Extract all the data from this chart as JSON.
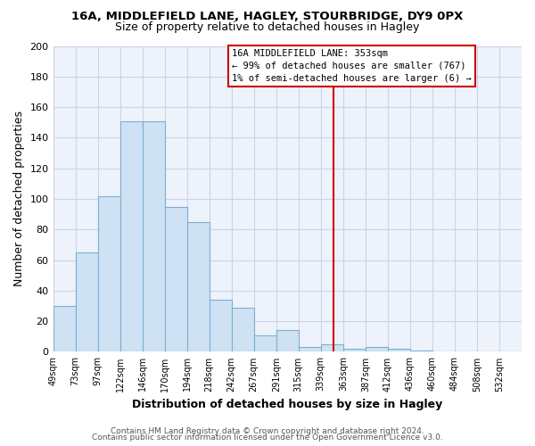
{
  "title": "16A, MIDDLEFIELD LANE, HAGLEY, STOURBRIDGE, DY9 0PX",
  "subtitle": "Size of property relative to detached houses in Hagley",
  "xlabel": "Distribution of detached houses by size in Hagley",
  "ylabel": "Number of detached properties",
  "bin_labels": [
    "49sqm",
    "73sqm",
    "97sqm",
    "122sqm",
    "146sqm",
    "170sqm",
    "194sqm",
    "218sqm",
    "242sqm",
    "267sqm",
    "291sqm",
    "315sqm",
    "339sqm",
    "363sqm",
    "387sqm",
    "412sqm",
    "436sqm",
    "460sqm",
    "484sqm",
    "508sqm",
    "532sqm"
  ],
  "bar_heights": [
    30,
    65,
    102,
    151,
    151,
    95,
    85,
    34,
    29,
    11,
    14,
    3,
    5,
    2,
    3,
    2,
    1,
    0,
    0,
    0,
    0
  ],
  "bar_color": "#cfe2f3",
  "bar_edge_color": "#7bafd4",
  "vline_color": "#cc0000",
  "annotation_title": "16A MIDDLEFIELD LANE: 353sqm",
  "annotation_line1": "← 99% of detached houses are smaller (767)",
  "annotation_line2": "1% of semi-detached houses are larger (6) →",
  "annotation_box_color": "#ffffff",
  "annotation_box_edge": "#cc0000",
  "ylim": [
    0,
    200
  ],
  "yticks": [
    0,
    20,
    40,
    60,
    80,
    100,
    120,
    140,
    160,
    180,
    200
  ],
  "footer1": "Contains HM Land Registry data © Crown copyright and database right 2024.",
  "footer2": "Contains public sector information licensed under the Open Government Licence v3.0.",
  "bg_color": "#ffffff",
  "plot_bg_color": "#eef2fb",
  "grid_color": "#c8d4e8"
}
